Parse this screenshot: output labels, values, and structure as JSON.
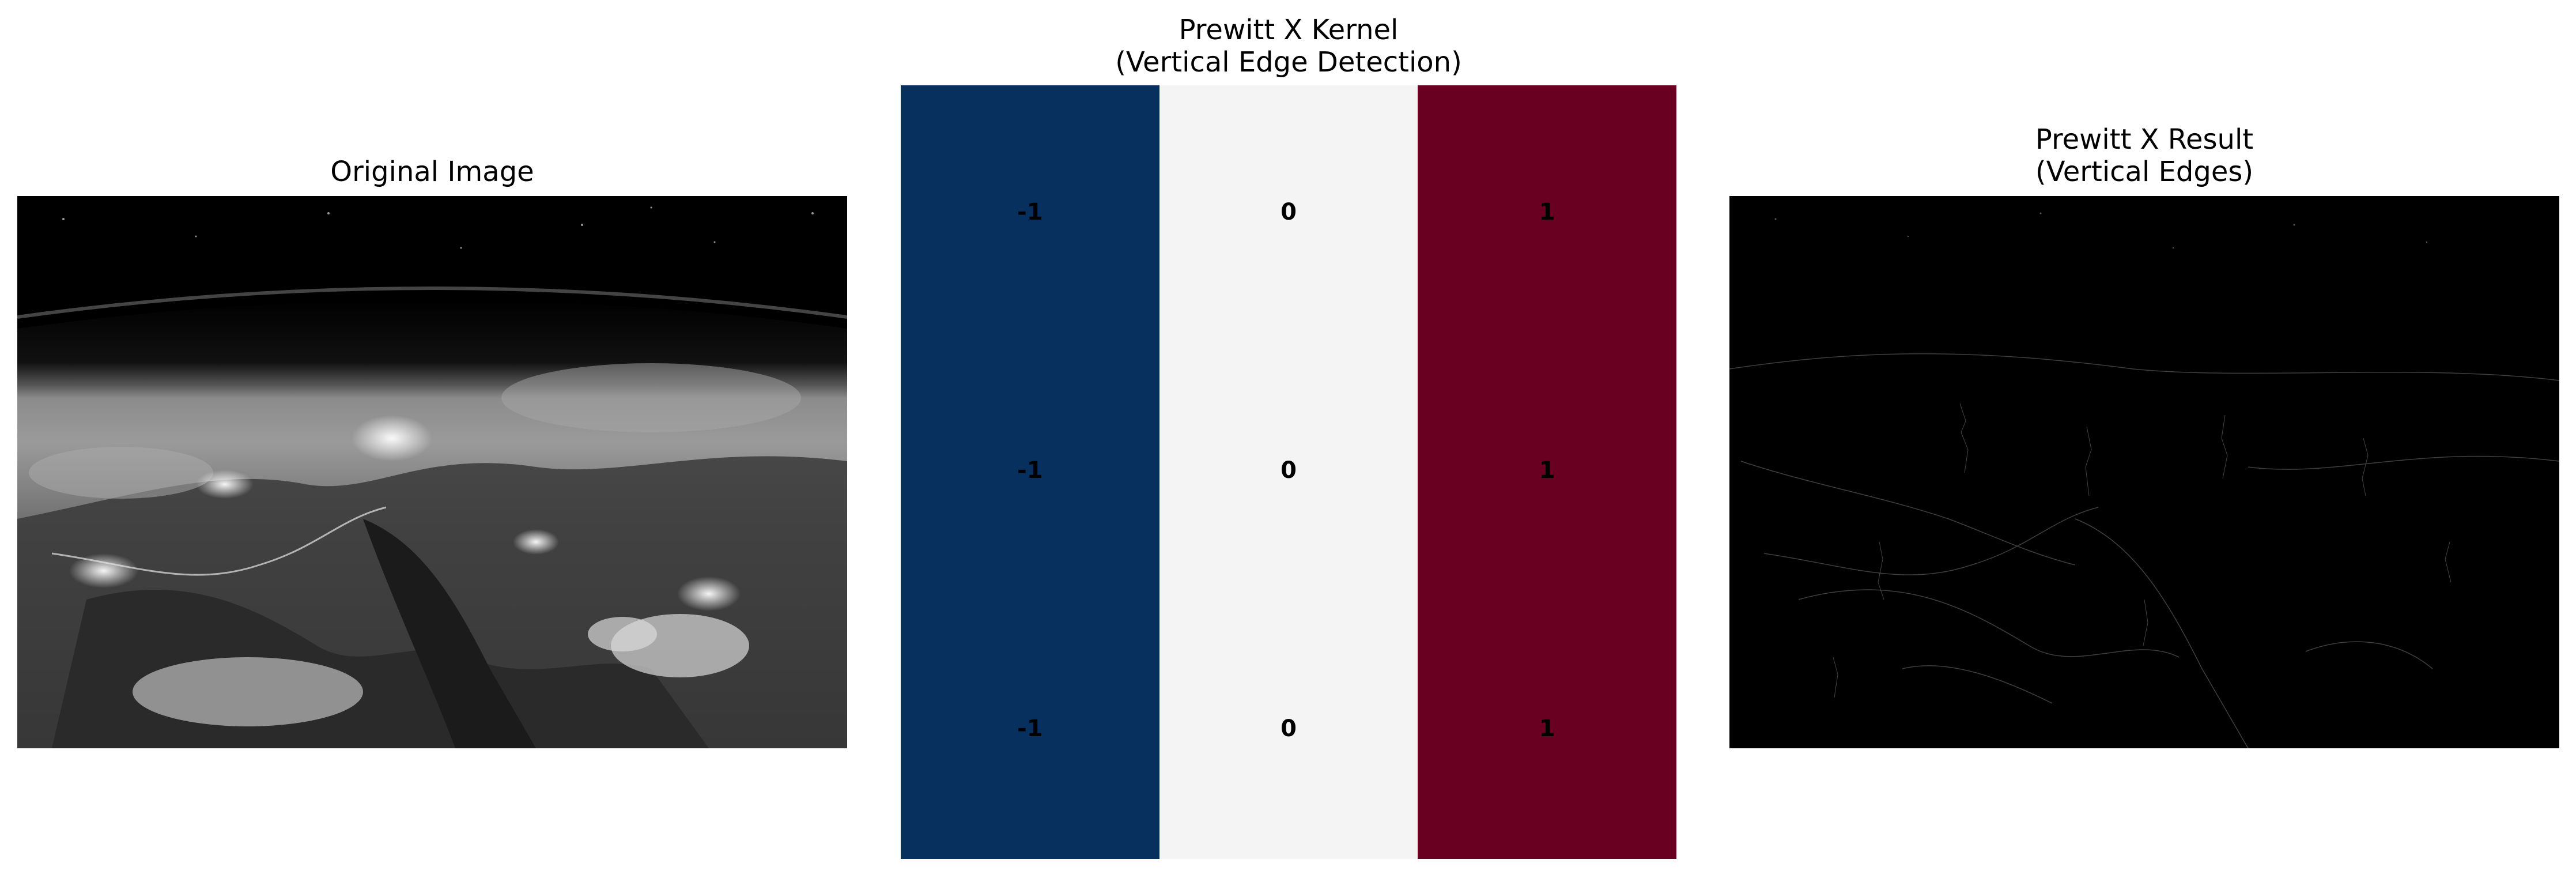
{
  "panels": {
    "original": {
      "title": "Original Image"
    },
    "kernel": {
      "title": "Prewitt X Kernel\n(Vertical Edge Detection)",
      "values": [
        [
          -1,
          0,
          1
        ],
        [
          -1,
          0,
          1
        ],
        [
          -1,
          0,
          1
        ]
      ],
      "labels": [
        [
          "-1",
          "0",
          "1"
        ],
        [
          "-1",
          "0",
          "1"
        ],
        [
          "-1",
          "0",
          "1"
        ]
      ],
      "colormap": {
        "-1": "#08305f",
        "0": "#f4f4f4",
        "1": "#6a0021"
      }
    },
    "result": {
      "title": "Prewitt X Result\n(Vertical Edges)"
    }
  }
}
